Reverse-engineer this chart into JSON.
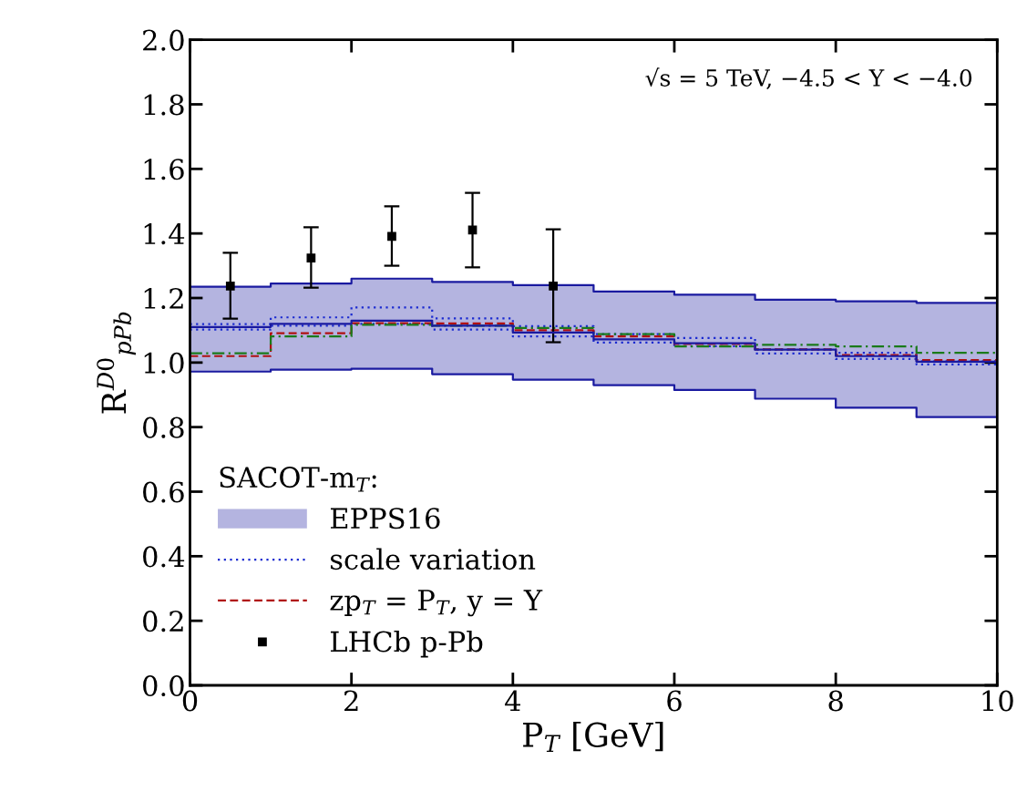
{
  "chart_data": {
    "type": "step",
    "xlabel": "P$_{T}$ [GeV]",
    "ylabel": "R$^{D0}$$_{pPb}$",
    "legend_title": "SACOT-m$_{T}$:",
    "annotations": [
      "√s = 5 TeV, −4.5 < Y < −4.0"
    ],
    "xlim": [
      0,
      10
    ],
    "xticks": [
      0,
      2,
      4,
      6,
      8,
      10
    ],
    "ylim": [
      0,
      2.0
    ],
    "yticks": [
      {
        "value": 0,
        "label": "0.0"
      },
      0.2,
      0.4,
      0.6,
      0.8,
      {
        "value": 1,
        "label": "1.0"
      },
      1.2,
      1.4,
      1.6,
      1.8,
      {
        "value": 2,
        "label": "2.0"
      }
    ],
    "legend": "bottom left",
    "series": [
      {
        "color": "#1a1aa0",
        "line_style": "solid",
        "x": [
          0,
          1,
          2,
          3,
          4,
          5,
          6,
          7,
          8,
          9,
          10
        ],
        "values": [
          1.235,
          1.245,
          1.26,
          1.25,
          1.24,
          1.22,
          1.21,
          1.195,
          1.19,
          1.185,
          1.185
        ]
      },
      {
        "color": "#1a1aa0",
        "line_style": "solid",
        "x": [
          0,
          1,
          2,
          3,
          4,
          5,
          6,
          7,
          8,
          9,
          10
        ],
        "values": [
          0.972,
          0.978,
          0.981,
          0.964,
          0.947,
          0.93,
          0.915,
          0.888,
          0.86,
          0.831,
          0.831
        ]
      },
      {
        "name": "EPPS16",
        "type": "step",
        "color": "#1a1aa0",
        "x": [
          0,
          1,
          2,
          3,
          4,
          5,
          6,
          7,
          8,
          9,
          10
        ],
        "values": [
          1.11,
          1.12,
          1.13,
          1.114,
          1.093,
          1.072,
          1.06,
          1.04,
          1.02,
          1.003,
          1.003
        ],
        "lower": [
          0.972,
          0.978,
          0.981,
          0.964,
          0.947,
          0.93,
          0.915,
          0.888,
          0.86,
          0.831,
          0.831
        ],
        "upper": [
          1.235,
          1.245,
          1.26,
          1.25,
          1.24,
          1.22,
          1.21,
          1.195,
          1.19,
          1.185,
          1.185
        ]
      },
      {
        "name": "scale variation",
        "color": "#1a2ad0",
        "line_style": "dotted",
        "x": [
          0,
          1,
          2,
          3,
          4,
          5,
          6,
          7,
          8,
          9,
          10
        ],
        "values": [
          1.119,
          1.14,
          1.171,
          1.137,
          1.113,
          1.088,
          1.076,
          1.04,
          1.03,
          1.004,
          1.004
        ]
      },
      {
        "color": "#1a2ad0",
        "line_style": "dotted",
        "x": [
          0,
          1,
          2,
          3,
          4,
          5,
          6,
          7,
          8,
          9,
          10
        ],
        "values": [
          1.102,
          1.114,
          1.12,
          1.102,
          1.081,
          1.062,
          1.051,
          1.028,
          1.011,
          0.994,
          0.994
        ]
      },
      {
        "name": "zp$_{T}$ = P$_{T}$, y = Y",
        "color": "#b01010",
        "line_style": "dashed",
        "x": [
          0,
          1,
          2,
          3,
          4,
          5,
          6,
          7,
          8,
          9,
          10
        ],
        "values": [
          1.02,
          1.091,
          1.122,
          1.121,
          1.1,
          1.081,
          1.058,
          1.041,
          1.023,
          1.008,
          1.008
        ]
      },
      {
        "color": "#1a7a1a",
        "line_style": "dashdot",
        "x": [
          0,
          1,
          2,
          3,
          4,
          5,
          6,
          7,
          8,
          9,
          10
        ],
        "values": [
          1.029,
          1.081,
          1.117,
          1.114,
          1.107,
          1.088,
          1.05,
          1.055,
          1.05,
          1.03,
          1.03
        ]
      },
      {
        "name": "LHCb p-Pb",
        "type": "scatter",
        "color": "#000000",
        "marker": "square",
        "x": [
          0.5,
          1.5,
          2.5,
          3.5,
          4.5
        ],
        "values": [
          1.237,
          1.324,
          1.391,
          1.411,
          1.237
        ],
        "errors": [
          [
            1.136,
            1.34
          ],
          [
            1.232,
            1.419
          ],
          [
            1.3,
            1.484
          ],
          [
            1.295,
            1.526
          ],
          [
            1.063,
            1.413
          ]
        ]
      }
    ]
  }
}
